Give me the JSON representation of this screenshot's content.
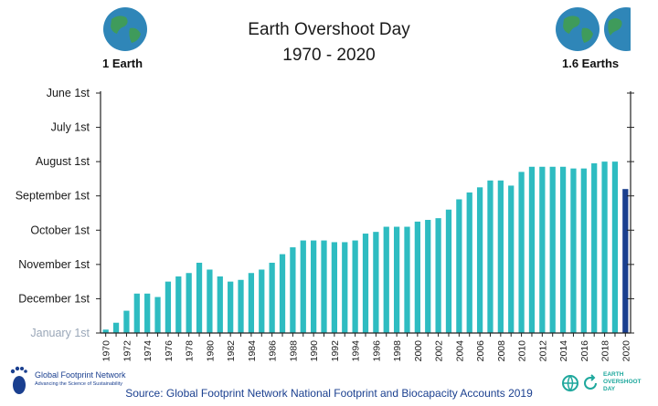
{
  "title_line1": "Earth Overshoot Day",
  "title_line2": "1970 - 2020",
  "left_label": "1 Earth",
  "right_label": "1.6 Earths",
  "source": "Source: Global Footprint Network National Footprint and Biocapacity Accounts 2019",
  "logo_left": {
    "name": "Global Footprint Network",
    "tagline": "Advancing the Science of Sustainability"
  },
  "logo_right": {
    "line1": "EARTH",
    "line2": "OVERSHOOT",
    "line3": "DAY"
  },
  "colors": {
    "bar": "#2ebcc1",
    "bar_2020": "#1a3f8f",
    "axis": "#222222",
    "tick_label": "#1a1a1a",
    "first_tick_label": "#9aa7b8",
    "globe_ocean": "#2f86b8",
    "globe_land": "#3f9b5b"
  },
  "chart_data": {
    "type": "bar",
    "title": "Earth Overshoot Day",
    "subtitle": "1970 - 2020",
    "x": [
      1970,
      1971,
      1972,
      1973,
      1974,
      1975,
      1976,
      1977,
      1978,
      1979,
      1980,
      1981,
      1982,
      1983,
      1984,
      1985,
      1986,
      1987,
      1988,
      1989,
      1990,
      1991,
      1992,
      1993,
      1994,
      1995,
      1996,
      1997,
      1998,
      1999,
      2000,
      2001,
      2002,
      2003,
      2004,
      2005,
      2006,
      2007,
      2008,
      2009,
      2010,
      2011,
      2012,
      2013,
      2014,
      2015,
      2016,
      2017,
      2018,
      2019,
      2020
    ],
    "x_tick_labels": [
      "1970",
      "1972",
      "1974",
      "1976",
      "1978",
      "1980",
      "1982",
      "1984",
      "1986",
      "1988",
      "1990",
      "1992",
      "1994",
      "1996",
      "1998",
      "2000",
      "2002",
      "2004",
      "2006",
      "2008",
      "2010",
      "2012",
      "2014",
      "2016",
      "2018",
      "2020"
    ],
    "y_tick_labels": [
      "January 1st",
      "December 1st",
      "November 1st",
      "October 1st",
      "September 1st",
      "August 1st",
      "July 1st",
      "June 1st"
    ],
    "y_unit": "months before year end (Jan 1st = 0, Jun 1st = 7)",
    "values": [
      0.1,
      0.3,
      0.65,
      1.15,
      1.15,
      1.05,
      1.5,
      1.65,
      1.75,
      2.05,
      1.85,
      1.65,
      1.5,
      1.55,
      1.75,
      1.85,
      2.05,
      2.3,
      2.5,
      2.7,
      2.7,
      2.7,
      2.65,
      2.65,
      2.7,
      2.9,
      2.95,
      3.1,
      3.1,
      3.1,
      3.25,
      3.3,
      3.35,
      3.6,
      3.9,
      4.1,
      4.25,
      4.45,
      4.45,
      4.3,
      4.7,
      4.85,
      4.85,
      4.85,
      4.85,
      4.8,
      4.8,
      4.95,
      5.0,
      5.0,
      4.2
    ],
    "highlight_year": 2020,
    "ylim": [
      0,
      7
    ],
    "grid": false
  }
}
